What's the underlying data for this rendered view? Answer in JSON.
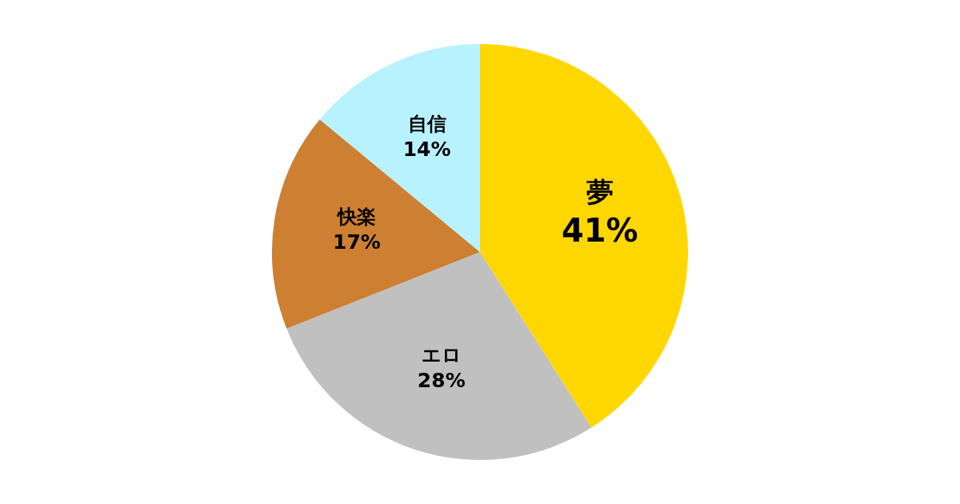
{
  "chart_data": {
    "type": "pie",
    "categories": [
      "夢",
      "エロ",
      "快楽",
      "自信"
    ],
    "values": [
      41,
      28,
      17,
      14
    ],
    "value_labels": [
      "41%",
      "28%",
      "17%",
      "14%"
    ],
    "colors": [
      "#ffd700",
      "#c0c0c0",
      "#cd7f32",
      "#b9f2ff"
    ],
    "legend": false
  }
}
